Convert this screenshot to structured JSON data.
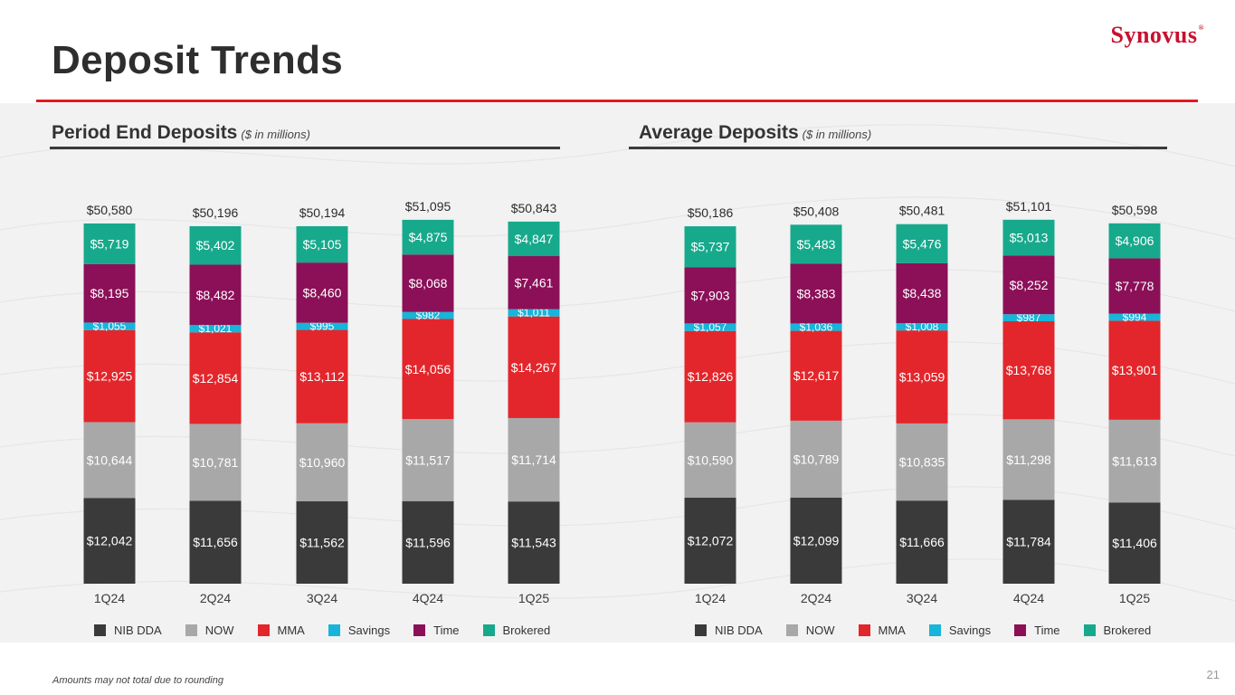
{
  "header": {
    "title": "Deposit Trends",
    "logo_text": "Synovus",
    "logo_mark": "®"
  },
  "colors": {
    "accent_red": "#e11b22",
    "NIB DDA": "#3a3a3a",
    "NOW": "#a8a8a8",
    "MMA": "#e3262b",
    "Savings": "#16b5d9",
    "Time": "#8b1058",
    "Brokered": "#17a98c"
  },
  "footnote": "Amounts may not total due to rounding",
  "page_number": "21",
  "chart_data": [
    {
      "type": "bar",
      "stacked": true,
      "title": "Period End Deposits",
      "subtitle": "($ in millions)",
      "categories": [
        "1Q24",
        "2Q24",
        "3Q24",
        "4Q24",
        "1Q25"
      ],
      "series": [
        {
          "name": "NIB DDA",
          "values": [
            12042,
            11656,
            11562,
            11596,
            11543
          ],
          "labels": [
            "$12,042",
            "$11,656",
            "$11,562",
            "$11,596",
            "$11,543"
          ]
        },
        {
          "name": "NOW",
          "values": [
            10644,
            10781,
            10960,
            11517,
            11714
          ],
          "labels": [
            "$10,644",
            "$10,781",
            "$10,960",
            "$11,517",
            "$11,714"
          ]
        },
        {
          "name": "MMA",
          "values": [
            12925,
            12854,
            13112,
            14056,
            14267
          ],
          "labels": [
            "$12,925",
            "$12,854",
            "$13,112",
            "$14,056",
            "$14,267"
          ]
        },
        {
          "name": "Savings",
          "values": [
            1055,
            1021,
            995,
            982,
            1011
          ],
          "labels": [
            "$1,055",
            "$1,021",
            "$995",
            "$982",
            "$1,011"
          ]
        },
        {
          "name": "Time",
          "values": [
            8195,
            8482,
            8460,
            8068,
            7461
          ],
          "labels": [
            "$8,195",
            "$8,482",
            "$8,460",
            "$8,068",
            "$7,461"
          ]
        },
        {
          "name": "Brokered",
          "values": [
            5719,
            5402,
            5105,
            4875,
            4847
          ],
          "labels": [
            "$5,719",
            "$5,402",
            "$5,105",
            "$4,875",
            "$4,847"
          ]
        }
      ],
      "totals": [
        50580,
        50196,
        50194,
        51095,
        50843
      ],
      "total_labels": [
        "$50,580",
        "$50,196",
        "$50,194",
        "$51,095",
        "$50,843"
      ],
      "legend": "bottom"
    },
    {
      "type": "bar",
      "stacked": true,
      "title": "Average Deposits",
      "subtitle": "($ in millions)",
      "categories": [
        "1Q24",
        "2Q24",
        "3Q24",
        "4Q24",
        "1Q25"
      ],
      "series": [
        {
          "name": "NIB DDA",
          "values": [
            12072,
            12099,
            11666,
            11784,
            11406
          ],
          "labels": [
            "$12,072",
            "$12,099",
            "$11,666",
            "$11,784",
            "$11,406"
          ]
        },
        {
          "name": "NOW",
          "values": [
            10590,
            10789,
            10835,
            11298,
            11613
          ],
          "labels": [
            "$10,590",
            "$10,789",
            "$10,835",
            "$11,298",
            "$11,613"
          ]
        },
        {
          "name": "MMA",
          "values": [
            12826,
            12617,
            13059,
            13768,
            13901
          ],
          "labels": [
            "$12,826",
            "$12,617",
            "$13,059",
            "$13,768",
            "$13,901"
          ]
        },
        {
          "name": "Savings",
          "values": [
            1057,
            1036,
            1008,
            987,
            994
          ],
          "labels": [
            "$1,057",
            "$1,036",
            "$1,008",
            "$987",
            "$994"
          ]
        },
        {
          "name": "Time",
          "values": [
            7903,
            8383,
            8438,
            8252,
            7778
          ],
          "labels": [
            "$7,903",
            "$8,383",
            "$8,438",
            "$8,252",
            "$7,778"
          ]
        },
        {
          "name": "Brokered",
          "values": [
            5737,
            5483,
            5476,
            5013,
            4906
          ],
          "labels": [
            "$5,737",
            "$5,483",
            "$5,476",
            "$5,013",
            "$4,906"
          ]
        }
      ],
      "totals": [
        50186,
        50408,
        50481,
        51101,
        50598
      ],
      "total_labels": [
        "$50,186",
        "$50,408",
        "$50,481",
        "$51,101",
        "$50,598"
      ],
      "legend": "bottom"
    }
  ]
}
